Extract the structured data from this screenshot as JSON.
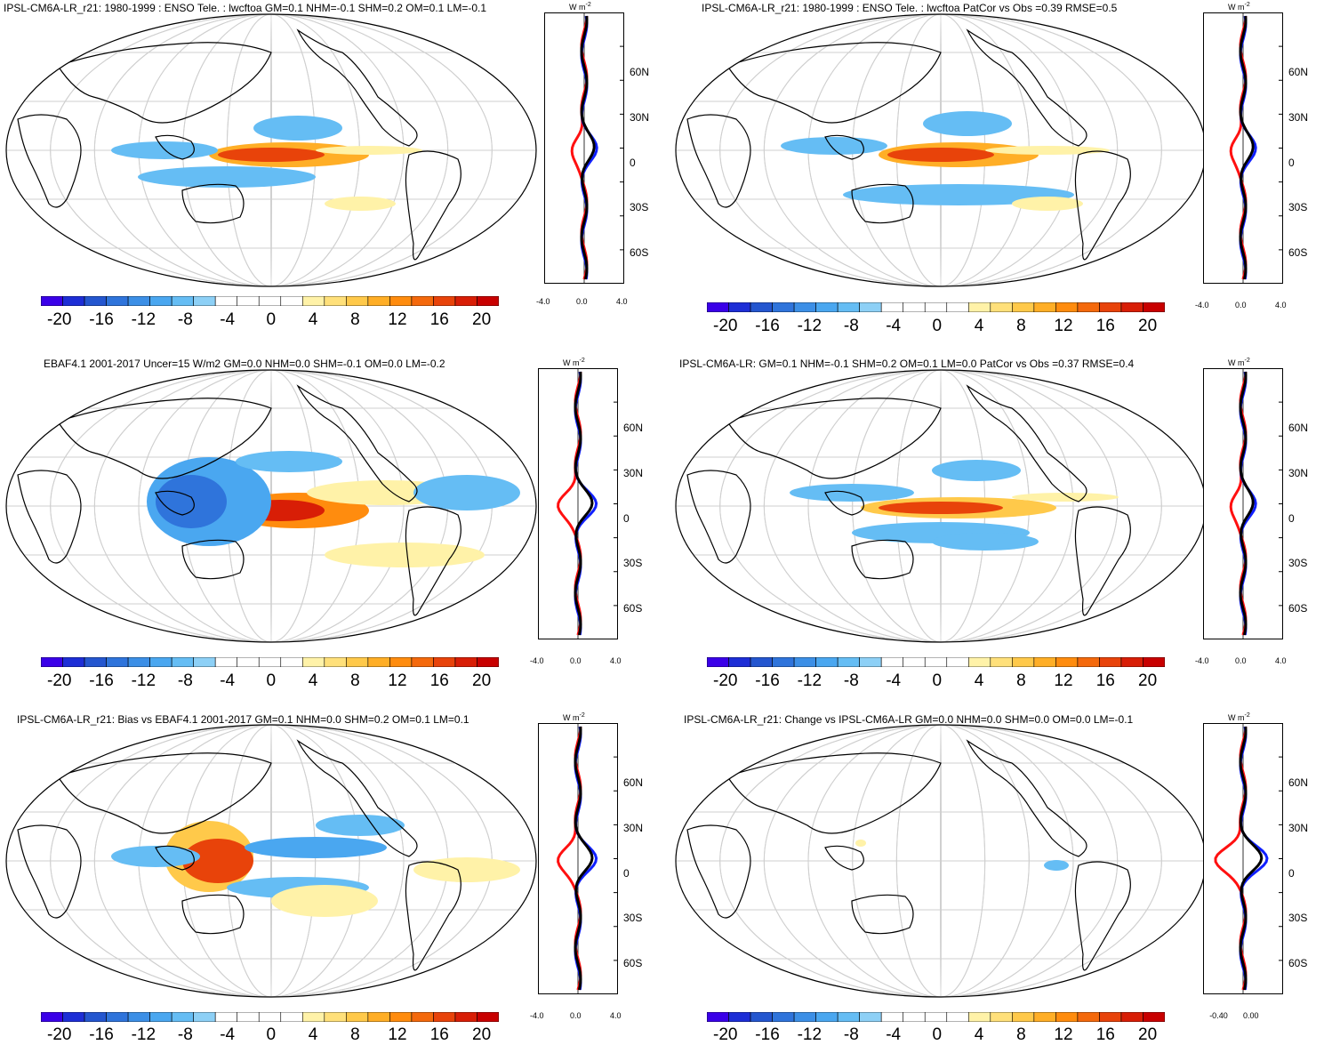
{
  "palette": [
    "#3a00e8",
    "#1d2ed6",
    "#2456cf",
    "#2f74db",
    "#3c8fe6",
    "#4aa7f0",
    "#65bdf4",
    "#8dd0f6",
    "#ffffff",
    "#ffffff",
    "#fff2a8",
    "#ffe07a",
    "#ffc94a",
    "#ffae26",
    "#ff8c0e",
    "#f4690c",
    "#e8430a",
    "#d81e06",
    "#c80000"
  ],
  "colorbar_labels": [
    "-20",
    "-16",
    "-12",
    "-8",
    "-4",
    "0",
    "4",
    "8",
    "12",
    "16",
    "20"
  ],
  "lat_labels": [
    "60N",
    "30N",
    "0",
    "30S",
    "60S"
  ],
  "unit_label": "W m",
  "unit_exp": "-2",
  "panels": [
    {
      "title": "IPSL-CM6A-LR_r21: 1980-1999 : ENSO Tele. : lwcftoa GM=0.1 NHM=-0.1 SHM=0.2 OM=0.1 LM=-0.1",
      "xticks": [
        "-4.0",
        "0.0",
        "4.0"
      ]
    },
    {
      "title": "IPSL-CM6A-LR_r21: 1980-1999 : ENSO Tele. : lwcftoa PatCor vs Obs =0.39 RMSE=0.5",
      "xticks": [
        "-4.0",
        "0.0",
        "4.0"
      ]
    },
    {
      "title": "EBAF4.1 2001-2017 Uncer=15 W/m2 GM=0.0 NHM=0.0 SHM=-0.1 OM=0.0 LM=-0.2",
      "xticks": [
        "-4.0",
        "0.0",
        "4.0"
      ]
    },
    {
      "title": "IPSL-CM6A-LR: GM=0.1 NHM=-0.1 SHM=0.2 OM=0.1 LM=0.0 PatCor vs Obs =0.37 RMSE=0.4",
      "xticks": [
        "-4.0",
        "0.0",
        "4.0"
      ]
    },
    {
      "title": "IPSL-CM6A-LR_r21: Bias vs EBAF4.1 2001-2017 GM=0.1 NHM=0.0 SHM=0.2 OM=0.1 LM=0.1",
      "xticks": [
        "-4.0",
        "0.0",
        "4.0"
      ]
    },
    {
      "title": "IPSL-CM6A-LR_r21: Change vs IPSL-CM6A-LR GM=0.0 NHM=0.0 SHM=0.0 OM=0.0 LM=-0.1",
      "xticks": [
        "-0.40",
        "0.00"
      ]
    }
  ]
}
